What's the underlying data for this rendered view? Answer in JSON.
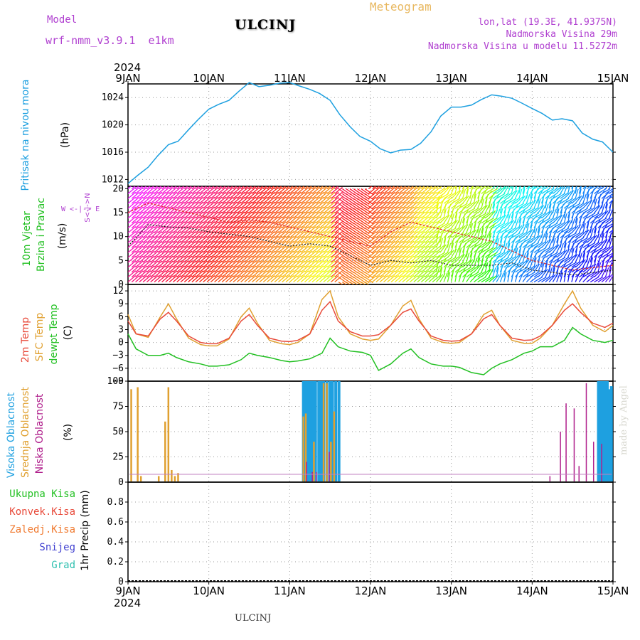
{
  "header": {
    "model_label": "Model",
    "model_name": "wrf-nmm_v3.9.1  e1km",
    "station": "ULCINJ",
    "product": "Meteogram",
    "lonlat": "lon,lat (19.3E, 41.9375N)",
    "elevation": "Nadmorska Visina 29m",
    "model_elevation": "Nadmorska Visina u modelu 11.5272m"
  },
  "footer": {
    "station": "ULCINJ",
    "watermark": "made by Angel"
  },
  "colors": {
    "pressure": "#1ea0e0",
    "temp2m": "#e84a3a",
    "sfc_temp": "#e0a030",
    "dewpt": "#22c022",
    "cloud_high": "#1ea0e0",
    "cloud_mid": "#e0a030",
    "cloud_low": "#b0208c",
    "wind_label": "#22c022",
    "wind_dir": "#b040d0"
  },
  "time_axis": {
    "year": "2024",
    "ticks": [
      "9JAN",
      "10JAN",
      "11JAN",
      "12JAN",
      "13JAN",
      "14JAN",
      "15JAN"
    ]
  },
  "panels": {
    "pressure": {
      "label_lines": [
        "Pritisak na nivou mora"
      ],
      "unit": "(hPa)"
    },
    "wind": {
      "label_lines": [
        "10m Vjetar",
        "Brzina i Pravac"
      ],
      "unit": "(m/s)",
      "compass": "W <-|-> E",
      "compass_ns": "S<-|->N"
    },
    "temp": {
      "label_lines": [
        "2m Temp",
        "SFC Temp",
        "dewpt Temp"
      ],
      "unit": "(C)"
    },
    "cloud": {
      "label_lines": [
        "Visoka Oblacnost",
        "Srednja Oblacnost",
        "Niska Oblacnost"
      ],
      "unit": "(%)"
    },
    "precip": {
      "legend": [
        "Ukupna Kisa",
        "Konvek.Kisa",
        "Zaledj.Kisa",
        "Snijeg",
        "Grad"
      ],
      "unit": "1hr Precip (mm)"
    }
  },
  "chart_data": [
    {
      "type": "line",
      "ylabel": "(hPa)",
      "ylim": [
        1011,
        1026
      ],
      "yticks": [
        1012,
        1016,
        1020,
        1024
      ],
      "grid": true,
      "x_days": [
        0,
        0.12,
        0.25,
        0.37,
        0.5,
        0.62,
        0.75,
        0.87,
        1.0,
        1.12,
        1.25,
        1.37,
        1.5,
        1.62,
        1.75,
        1.87,
        2.0,
        2.12,
        2.25,
        2.37,
        2.5,
        2.62,
        2.75,
        2.87,
        3.0,
        3.12,
        3.25,
        3.37,
        3.5,
        3.62,
        3.75,
        3.87,
        4.0,
        4.12,
        4.25,
        4.37,
        4.5,
        4.62,
        4.75,
        4.87,
        5.0,
        5.12,
        5.25,
        5.37,
        5.5,
        5.62,
        5.75,
        5.87,
        6.0
      ],
      "series": [
        {
          "values": [
            1011.4,
            1012.6,
            1013.8,
            1015.5,
            1017.1,
            1017.6,
            1019.3,
            1020.8,
            1022.3,
            1023.0,
            1023.6,
            1024.9,
            1026.2,
            1025.6,
            1025.8,
            1026.1,
            1026.2,
            1025.7,
            1025.2,
            1024.6,
            1023.6,
            1021.5,
            1019.7,
            1018.3,
            1017.6,
            1016.5,
            1015.9,
            1016.3,
            1016.4,
            1017.3,
            1019.0,
            1021.3,
            1022.6,
            1022.6,
            1022.9,
            1023.7,
            1024.4,
            1024.2,
            1023.9,
            1023.2,
            1022.4,
            1021.7,
            1020.7,
            1020.9,
            1020.6,
            1018.8,
            1017.9,
            1017.5,
            1016.0
          ]
        }
      ]
    },
    {
      "type": "line",
      "ylabel": "(m/s)",
      "ylim": [
        0,
        20.5
      ],
      "yticks": [
        0,
        5,
        10,
        15,
        20
      ],
      "grid": true,
      "x_days": [
        0,
        0.25,
        0.5,
        0.75,
        1.0,
        1.25,
        1.5,
        1.75,
        2.0,
        2.25,
        2.5,
        2.75,
        3.0,
        3.25,
        3.5,
        3.75,
        4.0,
        4.25,
        4.5,
        4.75,
        5.0,
        5.25,
        5.5,
        5.75,
        6.0
      ],
      "series": [
        {
          "values": [
            8,
            12.5,
            12,
            11.8,
            11,
            10.5,
            10,
            9,
            8,
            8.5,
            8,
            6,
            4,
            5,
            4.5,
            5,
            4,
            4,
            4,
            4.5,
            3,
            2.5,
            2,
            2.5,
            3
          ]
        },
        {
          "values": [
            15,
            17,
            16,
            15,
            14,
            13,
            13.5,
            13,
            12,
            11,
            10,
            9,
            8,
            11,
            13,
            12,
            11,
            10,
            9,
            7,
            5,
            4,
            3,
            3.5,
            4
          ]
        }
      ]
    },
    {
      "type": "line",
      "ylabel": "(C)",
      "ylim": [
        -9,
        13.5
      ],
      "yticks": [
        -9,
        -6,
        -3,
        0,
        3,
        6,
        9,
        12
      ],
      "grid": true,
      "x_days": [
        0,
        0.1,
        0.25,
        0.4,
        0.5,
        0.6,
        0.75,
        0.9,
        1.0,
        1.1,
        1.25,
        1.4,
        1.5,
        1.6,
        1.75,
        1.9,
        2.0,
        2.1,
        2.25,
        2.4,
        2.5,
        2.6,
        2.75,
        2.9,
        3.0,
        3.1,
        3.25,
        3.4,
        3.5,
        3.6,
        3.75,
        3.9,
        4.0,
        4.1,
        4.25,
        4.4,
        4.5,
        4.6,
        4.75,
        4.9,
        5.0,
        5.1,
        5.25,
        5.4,
        5.5,
        5.6,
        5.75,
        5.9,
        6.0
      ],
      "series": [
        {
          "name": "2m Temp",
          "values": [
            5,
            2,
            1.5,
            5.5,
            7,
            5,
            1.5,
            0,
            -0.3,
            -0.3,
            1,
            5,
            6.5,
            4,
            1,
            0.3,
            0.2,
            0.5,
            2,
            7.5,
            9.5,
            5,
            2.5,
            1.5,
            1.5,
            1.8,
            4,
            7,
            7.8,
            5,
            1.5,
            0.5,
            0.3,
            0.4,
            2,
            5.5,
            6.5,
            4,
            1,
            0.5,
            0.6,
            1.5,
            4,
            7.5,
            9,
            7,
            4.5,
            3.5,
            4.5
          ]
        },
        {
          "name": "SFC Temp",
          "values": [
            6.5,
            2,
            1.2,
            6,
            9,
            5.5,
            1,
            -0.5,
            -0.8,
            -0.8,
            0.8,
            6,
            8,
            4.5,
            0.5,
            -0.3,
            -0.5,
            0,
            2,
            10,
            12,
            6,
            2,
            0.8,
            0.5,
            0.8,
            4,
            8.5,
            9.8,
            5.5,
            1,
            0,
            -0.2,
            0,
            2,
            6.5,
            7.5,
            4,
            0.5,
            -0.2,
            -0.2,
            1,
            4,
            9,
            12,
            8,
            4,
            2.5,
            4
          ]
        },
        {
          "name": "dewpt Temp",
          "values": [
            2,
            -1.5,
            -3,
            -3,
            -2.5,
            -3.5,
            -4.5,
            -5,
            -5.5,
            -5.5,
            -5.2,
            -4,
            -2.5,
            -3,
            -3.5,
            -4.2,
            -4.5,
            -4.3,
            -3.8,
            -2.5,
            1,
            -1,
            -2,
            -2.3,
            -3,
            -6.5,
            -5,
            -2.5,
            -1.5,
            -3.5,
            -5,
            -5.5,
            -5.5,
            -5.8,
            -7,
            -7.5,
            -6,
            -5,
            -4,
            -2.5,
            -2,
            -1,
            -1,
            0.5,
            3.5,
            2,
            0.5,
            0,
            0.5
          ]
        }
      ]
    },
    {
      "type": "bar",
      "ylabel": "(%)",
      "ylim": [
        0,
        100
      ],
      "yticks": [
        0,
        25,
        50,
        75,
        100
      ],
      "grid": true,
      "series": [
        {
          "name": "Visoka Oblacnost",
          "x_days": [
            2.17,
            2.2,
            2.23,
            2.26,
            2.29,
            2.32,
            2.36,
            2.39,
            2.42,
            2.46,
            2.5,
            2.53,
            2.57,
            2.61,
            5.82,
            5.85,
            5.88,
            5.9,
            5.93,
            5.96,
            5.98
          ],
          "values": [
            100,
            100,
            100,
            100,
            100,
            100,
            100,
            100,
            100,
            100,
            100,
            100,
            100,
            100,
            100,
            100,
            100,
            100,
            100,
            92,
            95
          ]
        },
        {
          "name": "Srednja Oblacnost",
          "x_days": [
            0.04,
            0.12,
            0.16,
            0.38,
            0.46,
            0.5,
            0.54,
            0.58,
            0.62,
            2.17,
            2.2,
            2.3,
            2.42,
            2.46,
            2.51,
            2.55
          ],
          "values": [
            92,
            94,
            6,
            6,
            60,
            94,
            12,
            6,
            9,
            65,
            68,
            40,
            98,
            98,
            40,
            70
          ]
        },
        {
          "name": "Niska Oblacnost",
          "x_days": [
            2.21,
            2.28,
            2.33,
            2.49,
            5.22,
            5.35,
            5.42,
            5.52,
            5.58,
            5.67,
            5.76,
            5.86
          ],
          "values": [
            20,
            10,
            10,
            30,
            6,
            50,
            78,
            73,
            16,
            98,
            40,
            38
          ]
        }
      ]
    },
    {
      "type": "bar",
      "ylabel": "1hr Precip (mm)",
      "ylim": [
        0,
        1
      ],
      "yticks": [
        0,
        0.2,
        0.4,
        0.6,
        0.8
      ],
      "grid": true,
      "series": [
        {
          "name": "Ukupna Kisa",
          "values": []
        },
        {
          "name": "Konvek.Kisa",
          "values": []
        },
        {
          "name": "Zaledj.Kisa",
          "values": []
        },
        {
          "name": "Snijeg",
          "values": []
        },
        {
          "name": "Grad",
          "values": []
        }
      ]
    }
  ]
}
